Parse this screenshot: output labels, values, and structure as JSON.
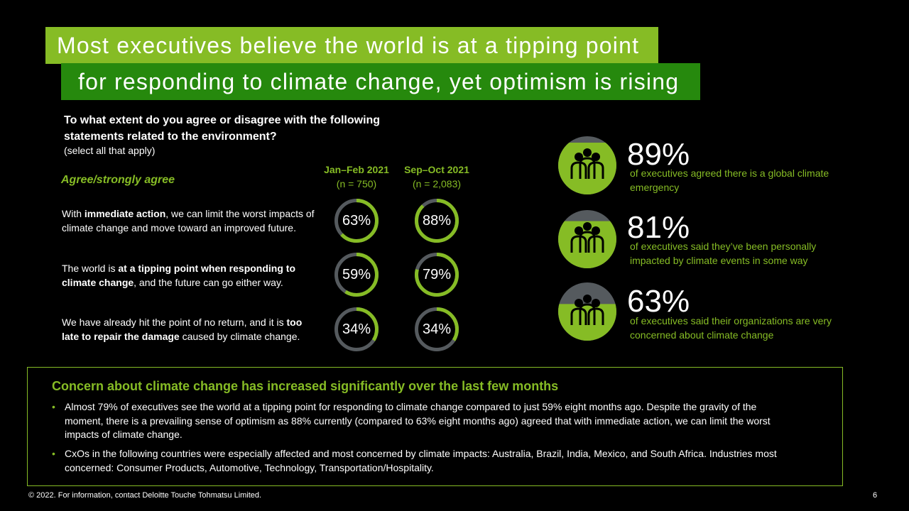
{
  "title": {
    "line1": "Most executives believe the world is at a tipping point",
    "line2": "for responding to climate change, yet optimism is rising"
  },
  "question": {
    "text": "To what extent do you agree or disagree with the following statements related to the environment?",
    "note": "(select all that apply)"
  },
  "agree_label": "Agree/strongly agree",
  "columns": [
    {
      "label": "Jan–Feb 2021",
      "n": "(n = 750)"
    },
    {
      "label": "Sep–Oct 2021",
      "n": "(n = 2,083)"
    }
  ],
  "statements": [
    {
      "pre": "With ",
      "bold": "immediate action",
      "post": ", we can limit the worst impacts of climate change and move toward an improved future."
    },
    {
      "pre": "The world is ",
      "bold": "at a tipping point when responding to climate change",
      "post": ", and the future can go either way."
    },
    {
      "pre": "We have already hit the point of no return, and it is ",
      "bold": "too late to repair the damage",
      "post": " caused by climate change."
    }
  ],
  "chart_data": {
    "type": "donut",
    "categories": [
      "immediate action",
      "tipping point",
      "too late"
    ],
    "series": [
      {
        "name": "Jan–Feb 2021",
        "values": [
          63,
          59,
          34
        ]
      },
      {
        "name": "Sep–Oct 2021",
        "values": [
          88,
          79,
          34
        ]
      }
    ],
    "labels": [
      [
        "63%",
        "88%"
      ],
      [
        "59%",
        "79%"
      ],
      [
        "34%",
        "34%"
      ]
    ],
    "ylim": [
      0,
      100
    ]
  },
  "stats": [
    {
      "value": "89%",
      "fill": 89,
      "desc": "of executives agreed there is a global climate emergency"
    },
    {
      "value": "81%",
      "fill": 81,
      "desc": "of executives said they’ve been personally impacted by climate events in some way"
    },
    {
      "value": "63%",
      "fill": 63,
      "desc": "of executives said their organizations are very concerned about climate change"
    }
  ],
  "summary": {
    "title": "Concern about climate change has increased significantly over the last few months",
    "bullet1": "Almost 79% of executives see the world at a tipping point for responding to climate change compared to just 59% eight months ago. Despite the gravity of the moment, there is a prevailing sense of optimism as 88% currently (compared to 63% eight months ago) agreed that with immediate action, we can limit the worst impacts of climate change.",
    "bullet2": "CxOs in the following countries were especially affected and most concerned by climate impacts: Australia, Brazil, India, Mexico, and South Africa. Industries most concerned: Consumer Products, Automotive, Technology, Transportation/Hospitality."
  },
  "footer": "© 2022. For information, contact Deloitte Touche Tohmatsu Limited.",
  "page_number": "6",
  "colors": {
    "accent": "#86bc25",
    "dark_green": "#26890d",
    "track": "#555a5e"
  },
  "icons": {
    "people": "people-group-icon"
  }
}
